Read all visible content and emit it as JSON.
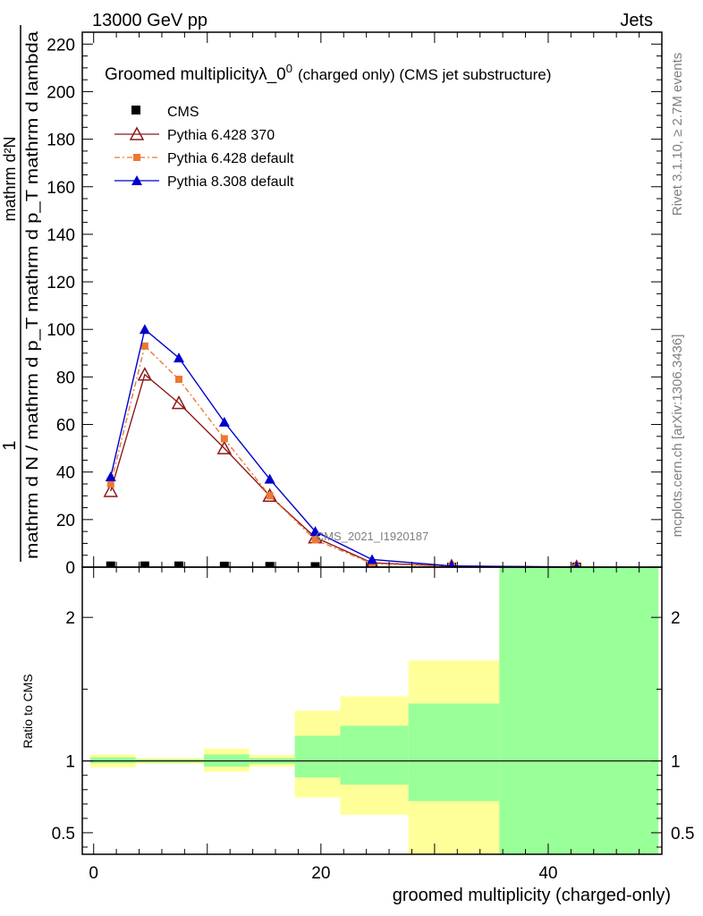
{
  "header": {
    "left": "13000 GeV pp",
    "right": "Jets"
  },
  "side_labels": {
    "rivet": "Rivet 3.1.10, ≥ 2.7M events",
    "mcplots": "mcplots.cern.ch [arXiv:1306.3436]"
  },
  "watermark": "CMS_2021_I1920187",
  "chart_data": [
    {
      "type": "line",
      "title_main": "Groomed multiplicityλ_0",
      "title_sup": "0",
      "title_tail": "(charged only) (CMS jet substructure)",
      "ylabel_numerator": "mathrm d²N",
      "ylabel_denominator": "mathrm d N / mathrm d p_T mathrm d p_T mathrm d lambda",
      "ylabel_prefix": "1",
      "ylim": [
        0,
        225
      ],
      "xlim": [
        -1,
        50
      ],
      "y_ticks": [
        0,
        20,
        40,
        60,
        80,
        100,
        120,
        140,
        160,
        180,
        200,
        220
      ],
      "legend_placement": "top-left",
      "series": [
        {
          "name": "CMS",
          "color": "#000000",
          "marker": "square",
          "x": [
            1.5,
            4.5,
            7.5,
            11.5,
            15.5,
            19.5,
            24.5,
            31.5,
            42.5
          ],
          "y": [
            0.5,
            0.5,
            0.5,
            0.4,
            0.3,
            0.2,
            0.05,
            0.01,
            0.002
          ]
        },
        {
          "name": "Pythia 6.428 370",
          "color": "#8b1a1a",
          "marker": "open-triangle",
          "x": [
            1.5,
            4.5,
            7.5,
            11.5,
            15.5,
            19.5,
            24.5,
            31.5,
            42.5
          ],
          "y": [
            32,
            81,
            69,
            50,
            30,
            12.5,
            1.8,
            0.4,
            0.05
          ]
        },
        {
          "name": "Pythia 6.428 default",
          "color": "#ee7733",
          "marker": "square",
          "x": [
            1.5,
            4.5,
            7.5,
            11.5,
            15.5,
            19.5,
            24.5,
            31.5,
            42.5
          ],
          "y": [
            35,
            93,
            79,
            54,
            30,
            11.5,
            1.5,
            0.3,
            0.04
          ]
        },
        {
          "name": "Pythia 8.308 default",
          "color": "#0000cc",
          "marker": "triangle",
          "x": [
            1.5,
            4.5,
            7.5,
            11.5,
            15.5,
            19.5,
            24.5,
            31.5,
            42.5
          ],
          "y": [
            38,
            100,
            88,
            61,
            37,
            15,
            3.2,
            0.5,
            0.06
          ]
        }
      ]
    },
    {
      "type": "area",
      "ylabel": "Ratio to CMS",
      "xlabel": "groomed multiplicity (charged-only)",
      "ylim": [
        0.35,
        2.35
      ],
      "x_ticks": [
        0,
        20,
        40
      ],
      "y_ticks": [
        0.5,
        1,
        2
      ],
      "bands": [
        {
          "x0": -0.3,
          "x1": 3.7,
          "inner": [
            0.985,
            1.025
          ],
          "outer": [
            0.955,
            1.045
          ]
        },
        {
          "x0": 3.7,
          "x1": 9.7,
          "inner": [
            0.99,
            1.01
          ],
          "outer": [
            0.98,
            1.02
          ]
        },
        {
          "x0": 9.7,
          "x1": 13.7,
          "inner": [
            0.96,
            1.045
          ],
          "outer": [
            0.925,
            1.085
          ]
        },
        {
          "x0": 13.7,
          "x1": 17.7,
          "inner": [
            0.98,
            1.02
          ],
          "outer": [
            0.96,
            1.04
          ]
        },
        {
          "x0": 17.7,
          "x1": 21.7,
          "inner": [
            0.885,
            1.175
          ],
          "outer": [
            0.745,
            1.35
          ]
        },
        {
          "x0": 21.7,
          "x1": 27.7,
          "inner": [
            0.835,
            1.245
          ],
          "outer": [
            0.625,
            1.45
          ]
        },
        {
          "x0": 27.7,
          "x1": 35.7,
          "inner": [
            0.72,
            1.4
          ],
          "outer": [
            0.35,
            1.7
          ]
        },
        {
          "x0": 35.7,
          "x1": 49.7,
          "inner": [
            0.35,
            2.35
          ],
          "outer": [
            0.35,
            2.35
          ]
        }
      ],
      "inner_color": "#99ff99",
      "outer_color": "#ffff99",
      "reference_line": 1
    }
  ]
}
